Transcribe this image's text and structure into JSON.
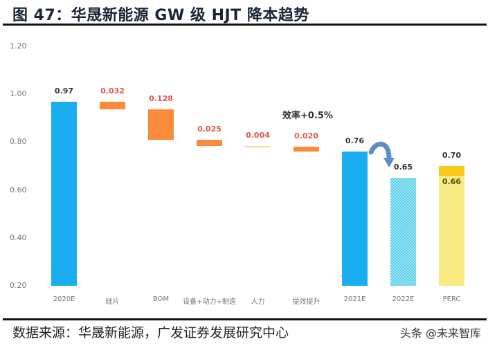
{
  "header": {
    "title": "图 47：华晟新能源 GW 级 HJT 降本趋势"
  },
  "footer": {
    "source": "数据来源：华晟新能源，广发证券发展研究中心",
    "watermark": "头条 @未来智库"
  },
  "colors": {
    "total": "#1aaef0",
    "decrease": "#f98b3a",
    "projected": "#7fdcef",
    "perc_top": "#f9c81a",
    "perc_body": "#faee8c",
    "label_red": "#e0574a",
    "label_dark": "#333333"
  },
  "chart_data": {
    "type": "bar",
    "subtype": "waterfall",
    "title": "华晟新能源 GW 级 HJT 降本趋势",
    "xlabel": "",
    "ylabel": "",
    "ylim": [
      0.2,
      1.2
    ],
    "yticks": [
      "1.20",
      "1.00",
      "0.80",
      "0.60",
      "0.40",
      "0.20"
    ],
    "grid": false,
    "categories": [
      "2020E",
      "硅片",
      "BOM",
      "设备+动力+制造",
      "人力",
      "提效提升",
      "2021E",
      "2022E",
      "PERC"
    ],
    "values": [
      0.97,
      -0.032,
      -0.128,
      -0.025,
      -0.004,
      -0.02,
      0.76,
      0.65,
      0.7
    ],
    "value_labels": [
      "0.97",
      "0.032",
      "0.128",
      "0.025",
      "0.004",
      "0.020",
      "0.76",
      "0.65",
      "0.70"
    ],
    "perc_inner_label": "0.66",
    "perc_inner_value": 0.66,
    "annotations": [
      "效率+0.5%"
    ]
  }
}
